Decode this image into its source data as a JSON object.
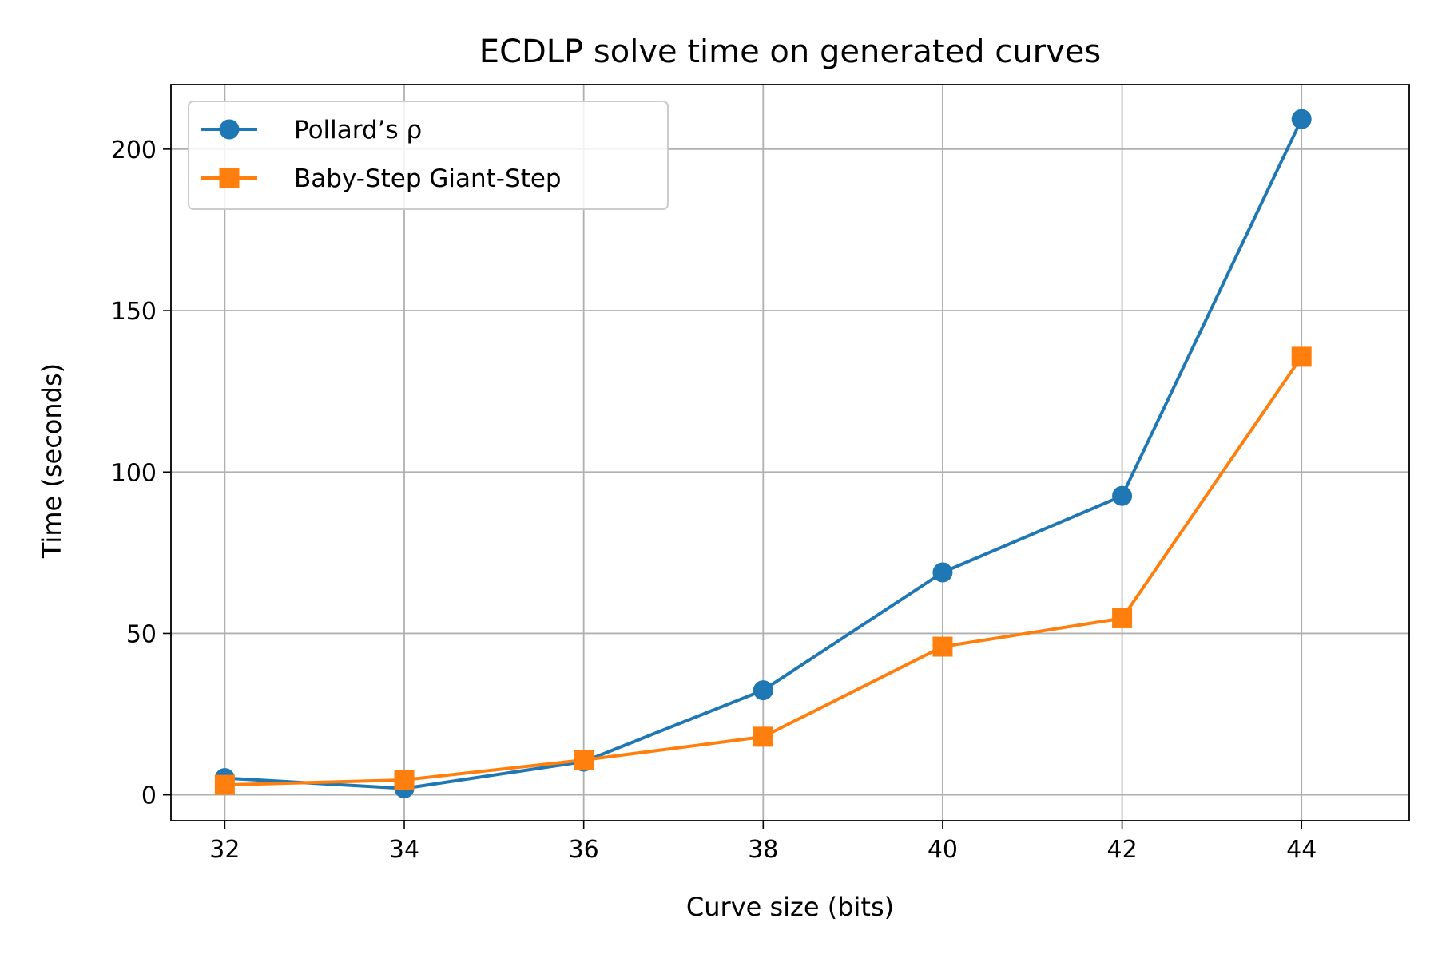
{
  "chart_data": {
    "type": "line",
    "title": "ECDLP solve time on generated curves",
    "xlabel": "Curve size (bits)",
    "ylabel": "Time (seconds)",
    "x": [
      32,
      34,
      36,
      38,
      40,
      42,
      44
    ],
    "xticks": [
      32,
      34,
      36,
      38,
      40,
      42,
      44
    ],
    "yticks": [
      0,
      50,
      100,
      150,
      200
    ],
    "xlim": [
      31.4,
      45.2
    ],
    "ylim": [
      -8,
      220
    ],
    "grid": true,
    "legend_position": "top-left",
    "series": [
      {
        "name": "Pollard’s ρ",
        "values": [
          5.2,
          2.0,
          10.3,
          32.4,
          68.9,
          92.6,
          209.3
        ],
        "color": "#1f77b4",
        "marker": "circle"
      },
      {
        "name": "Baby-Step Giant-Step",
        "values": [
          3.1,
          4.6,
          10.8,
          18.0,
          45.9,
          54.7,
          135.7
        ],
        "color": "#ff7f0e",
        "marker": "square"
      }
    ]
  }
}
